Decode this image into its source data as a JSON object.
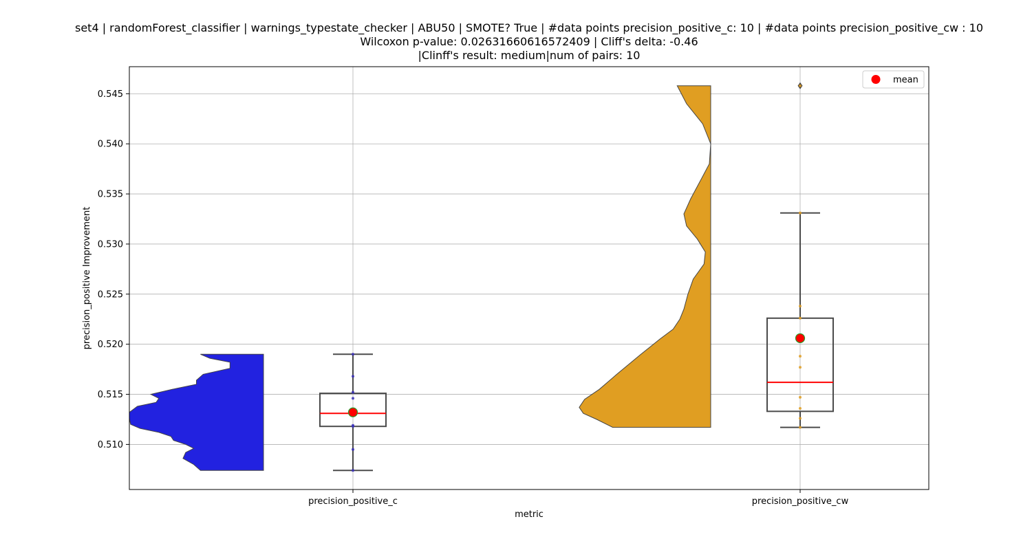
{
  "chart_data": {
    "type": "violin+box",
    "title_lines": [
      "set4 | randomForest_classifier | warnings_typestate_checker | ABU50 | SMOTE? True | #data points precision_positive_c: 10 | #data points precision_positive_cw : 10",
      "Wilcoxon p-value: 0.02631660616572409 | Cliff's delta: -0.46",
      "|Clinff's result: medium|num of pairs: 10"
    ],
    "xlabel": "metric",
    "ylabel": "precision_positive Improvement",
    "categories": [
      "precision_positive_c",
      "precision_positive_cw"
    ],
    "ylim": [
      0.5055,
      0.5477
    ],
    "yticks": [
      0.51,
      0.515,
      0.52,
      0.525,
      0.53,
      0.535,
      0.54,
      0.545
    ],
    "ytick_labels": [
      "0.510",
      "0.515",
      "0.520",
      "0.525",
      "0.530",
      "0.535",
      "0.540",
      "0.545"
    ],
    "grid": true,
    "legend": {
      "label": "mean",
      "placement": "top-right",
      "marker_color": "#ff0000"
    },
    "series": [
      {
        "category": "precision_positive_c",
        "violin_color": "#2222e0",
        "point_color": "#3a2fb8",
        "points": [
          0.5074,
          0.5095,
          0.5118,
          0.5119,
          0.5131,
          0.5133,
          0.5146,
          0.5152,
          0.5168,
          0.519
        ],
        "box": {
          "whisker_low": 0.5074,
          "q1": 0.5118,
          "median": 0.5131,
          "q3": 0.5151,
          "whisker_high": 0.519,
          "mean": 0.5132
        },
        "violin_profile": [
          [
            0.5074,
            0.47
          ],
          [
            0.508,
            0.52
          ],
          [
            0.5086,
            0.6
          ],
          [
            0.5092,
            0.58
          ],
          [
            0.5096,
            0.52
          ],
          [
            0.51,
            0.58
          ],
          [
            0.5104,
            0.67
          ],
          [
            0.5108,
            0.69
          ],
          [
            0.5112,
            0.78
          ],
          [
            0.5116,
            0.92
          ],
          [
            0.512,
            0.99
          ],
          [
            0.5126,
            1.0
          ],
          [
            0.5132,
            1.0
          ],
          [
            0.5138,
            0.94
          ],
          [
            0.5142,
            0.8
          ],
          [
            0.5146,
            0.78
          ],
          [
            0.515,
            0.84
          ],
          [
            0.5155,
            0.68
          ],
          [
            0.516,
            0.5
          ],
          [
            0.5164,
            0.5
          ],
          [
            0.517,
            0.45
          ],
          [
            0.5176,
            0.25
          ],
          [
            0.5182,
            0.25
          ],
          [
            0.5186,
            0.4
          ],
          [
            0.519,
            0.47
          ]
        ]
      },
      {
        "category": "precision_positive_cw",
        "violin_color": "#e09e22",
        "point_color": "#e09e22",
        "points": [
          0.5117,
          0.5126,
          0.5136,
          0.5147,
          0.5177,
          0.5188,
          0.5226,
          0.5238,
          0.5331,
          0.5458
        ],
        "box": {
          "whisker_low": 0.5117,
          "q1": 0.5133,
          "median": 0.5162,
          "q3": 0.5226,
          "whisker_high": 0.5331,
          "mean": 0.5206
        },
        "outliers": [
          0.5458
        ],
        "violin_profile": [
          [
            0.5117,
            0.73
          ],
          [
            0.5125,
            0.85
          ],
          [
            0.5131,
            0.95
          ],
          [
            0.5137,
            0.98
          ],
          [
            0.5145,
            0.94
          ],
          [
            0.5155,
            0.83
          ],
          [
            0.517,
            0.7
          ],
          [
            0.519,
            0.52
          ],
          [
            0.5205,
            0.38
          ],
          [
            0.5215,
            0.28
          ],
          [
            0.5225,
            0.23
          ],
          [
            0.5235,
            0.2
          ],
          [
            0.525,
            0.17
          ],
          [
            0.5265,
            0.13
          ],
          [
            0.528,
            0.05
          ],
          [
            0.5292,
            0.04
          ],
          [
            0.5305,
            0.1
          ],
          [
            0.5318,
            0.18
          ],
          [
            0.533,
            0.2
          ],
          [
            0.5345,
            0.15
          ],
          [
            0.5365,
            0.07
          ],
          [
            0.538,
            0.01
          ],
          [
            0.54,
            0.0
          ],
          [
            0.542,
            0.06
          ],
          [
            0.544,
            0.18
          ],
          [
            0.5458,
            0.25
          ]
        ]
      }
    ]
  }
}
